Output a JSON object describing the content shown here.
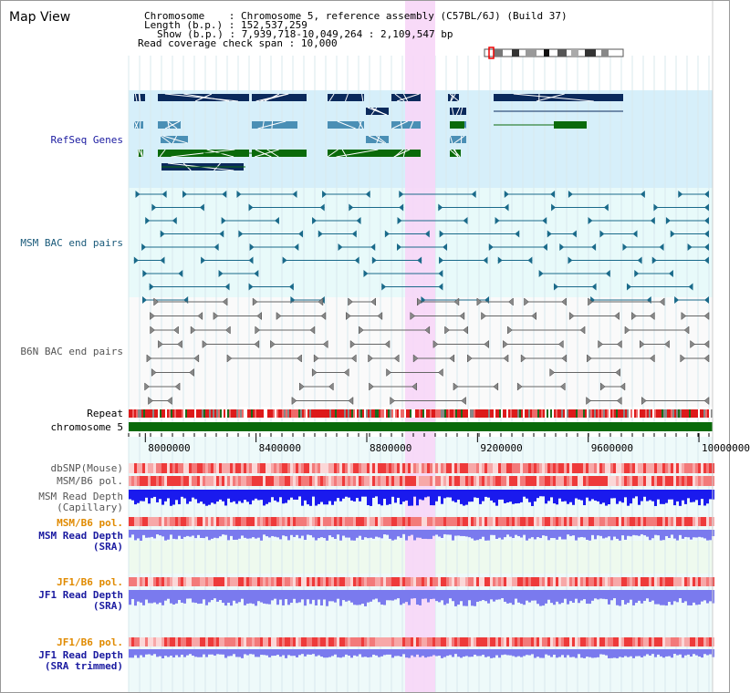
{
  "title": "Map View",
  "header": {
    "chromosome_key": "Chromosome",
    "chromosome_val": "Chromosome 5, reference assembly (C57BL/6J) (Build 37)",
    "length_key": "Length (b.p.)",
    "length_val": "152,537,259",
    "show_key": "Show (b.p.)",
    "show_val": "7,939,718-10,049,264 : 2,109,547 bp",
    "coverage_key": "Read coverage check span",
    "coverage_val": "10,000"
  },
  "tracks": {
    "refseq": "RefSeq Genes",
    "msm_bac": "MSM BAC end pairs",
    "b6n_bac": "B6N BAC end pairs",
    "repeat": "Repeat",
    "chromosome": "chromosome 5",
    "dbsnp": "dbSNP(Mouse)",
    "msm_b6_pol": "MSM/B6 pol.",
    "msm_depth_cap_1": "MSM Read Depth",
    "msm_depth_cap_2": "(Capillary)",
    "msm_b6_pol_sra": "MSM/B6 pol.",
    "msm_depth_sra_1": "MSM Read Depth",
    "msm_depth_sra_2": "(SRA)",
    "jf1_b6_pol": "JF1/B6 pol.",
    "jf1_depth_sra_1": "JF1 Read Depth",
    "jf1_depth_sra_2": "(SRA)",
    "jf1_b6_pol_trim": "JF1/B6 pol.",
    "jf1_depth_trim_1": "JF1 Read Depth",
    "jf1_depth_trim_2": "(SRA trimmed)"
  },
  "axis": {
    "start": 7939718,
    "end": 10049264,
    "ticks": [
      "8000000",
      "8400000",
      "8800000",
      "9200000",
      "9600000",
      "10000000"
    ]
  },
  "colors": {
    "refseq_band": "#d6effa",
    "bac_band": "#e8fafa",
    "highlight": "#f7d6f7",
    "gene_dark": "#0b2a5c",
    "gene_mid": "#4a8fb5",
    "gene_green": "#0a6a0a",
    "msm_line": "#1a6a8a",
    "b6n_line": "#666666",
    "depth_blue": "#1a1aee",
    "depth_light": "#7a7aee",
    "chrom_green": "#0a6a0a",
    "label_blue": "#1a1aa0",
    "label_teal": "#1a5a7a",
    "label_orange": "#e08a00"
  }
}
